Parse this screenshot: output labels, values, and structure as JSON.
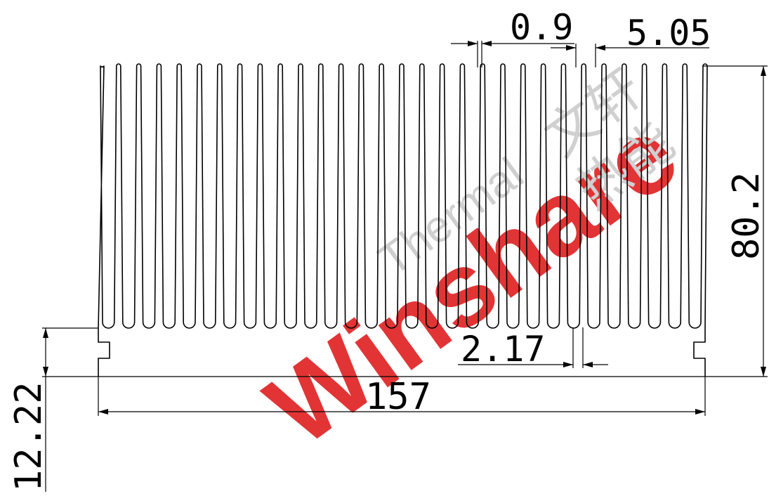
{
  "drawing": {
    "fin_count": 31,
    "dimensions": {
      "fin_tip_width": "0.9",
      "fin_pitch": "5.05",
      "overall_height": "80.2",
      "fin_gap": "2.17",
      "overall_width": "157",
      "base_height": "12.22"
    }
  },
  "watermark": {
    "brand_en": "Winshare",
    "brand_sub_en": "Thermal",
    "brand_cn_1": "文轩",
    "brand_cn_2": "热能",
    "brand_color": "#e0292a",
    "text_color": "#d2d2d2"
  }
}
